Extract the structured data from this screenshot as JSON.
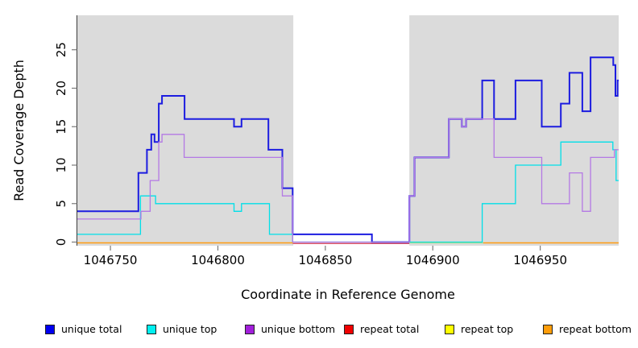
{
  "figure": {
    "xlabel": "Coordinate in Reference Genome",
    "ylabel": "Read Coverage Depth"
  },
  "chart_data": {
    "type": "line",
    "subtype": "step-plot-read-coverage",
    "title": "",
    "xlabel": "Coordinate in Reference Genome",
    "ylabel": "Read Coverage Depth",
    "xlim": [
      1046734.6,
      1046986.5
    ],
    "ylim": [
      0,
      29.5
    ],
    "grid": false,
    "x_ticks": [
      1046750,
      1046800,
      1046850,
      1046900,
      1046950
    ],
    "y_ticks": [
      0,
      5,
      10,
      15,
      20,
      25
    ],
    "background_color": "#ffffff",
    "shaded_regions": [
      {
        "name": "left-gray-band",
        "x0": 1046734.6,
        "x1": 1046835.1,
        "color": "#DBDBDB"
      },
      {
        "name": "right-gray-band",
        "x0": 1046889.1,
        "x1": 1046986.5,
        "color": "#DBDBDB"
      }
    ],
    "white_gap_region": {
      "x0": 1046835.1,
      "x1": 1046889.1
    },
    "legend_position": "bottom-row",
    "series": [
      {
        "name": "unique total",
        "color": "#1C1CE0",
        "legend_color": "#0000F0",
        "width": 2,
        "x_end": 1046986.5,
        "steps": [
          [
            1046734.6,
            4
          ],
          [
            1046763,
            9
          ],
          [
            1046767,
            12
          ],
          [
            1046769,
            14
          ],
          [
            1046770.5,
            13
          ],
          [
            1046772.5,
            18
          ],
          [
            1046774,
            19
          ],
          [
            1046784.5,
            16
          ],
          [
            1046807.5,
            15
          ],
          [
            1046811,
            16
          ],
          [
            1046823.5,
            12
          ],
          [
            1046830,
            7
          ],
          [
            1046834.8,
            1
          ],
          [
            1046871.7,
            0
          ],
          [
            1046889.1,
            6
          ],
          [
            1046891.5,
            11
          ],
          [
            1046907.5,
            16
          ],
          [
            1046913.5,
            15
          ],
          [
            1046915.5,
            16
          ],
          [
            1046923,
            21
          ],
          [
            1046928.5,
            16
          ],
          [
            1046938.5,
            21
          ],
          [
            1046950.7,
            15
          ],
          [
            1046959.6,
            18
          ],
          [
            1046963.6,
            22
          ],
          [
            1046969.6,
            17
          ],
          [
            1046973.4,
            24
          ],
          [
            1046984,
            23
          ],
          [
            1046985,
            19
          ],
          [
            1046986,
            21
          ]
        ]
      },
      {
        "name": "unique top",
        "color": "#00DFE8",
        "legend_color": "#00F0F0",
        "width": 1.3,
        "x_end": 1046986.5,
        "steps": [
          [
            1046734.6,
            1
          ],
          [
            1046764,
            6
          ],
          [
            1046771,
            5
          ],
          [
            1046807.5,
            4
          ],
          [
            1046811,
            5
          ],
          [
            1046824,
            1
          ],
          [
            1046834.8,
            0
          ],
          [
            1046923,
            5
          ],
          [
            1046938.5,
            10
          ],
          [
            1046959.6,
            13
          ],
          [
            1046983.8,
            12
          ],
          [
            1046985.3,
            8
          ]
        ]
      },
      {
        "name": "unique bottom",
        "color": "#B479E4",
        "legend_color": "#A21FDB",
        "width": 1.3,
        "x_end": 1046986.5,
        "steps": [
          [
            1046734.6,
            3
          ],
          [
            1046764.2,
            4
          ],
          [
            1046768.5,
            8
          ],
          [
            1046772.5,
            13
          ],
          [
            1046774,
            14
          ],
          [
            1046784.3,
            11
          ],
          [
            1046830,
            6
          ],
          [
            1046834.8,
            0
          ],
          [
            1046889.1,
            6
          ],
          [
            1046891.5,
            11
          ],
          [
            1046907.5,
            16
          ],
          [
            1046913.5,
            15
          ],
          [
            1046915.5,
            16
          ],
          [
            1046928.5,
            11
          ],
          [
            1046950.7,
            5
          ],
          [
            1046963.6,
            9
          ],
          [
            1046969.6,
            4
          ],
          [
            1046973.4,
            11
          ],
          [
            1046984.5,
            12
          ]
        ]
      },
      {
        "name": "repeat total",
        "color": "#DD4963",
        "legend_color": "#F00000",
        "width": 1.3,
        "segments": [
          {
            "x0": 1046834.8,
            "x1": 1046889.1,
            "value": 0
          }
        ]
      },
      {
        "name": "repeat top",
        "color": "#93DD93",
        "legend_color": "#FFFF00",
        "width": 1.3,
        "segments": [
          {
            "x0": 1046889.1,
            "x1": 1046923.5,
            "value": 0
          }
        ]
      },
      {
        "name": "repeat bottom",
        "color": "#FF9C12",
        "legend_color": "#FF9D0A",
        "width": 1.6,
        "segments": [
          {
            "x0": 1046734.6,
            "x1": 1046834.8,
            "value": 0
          },
          {
            "x0": 1046923.5,
            "x1": 1046986.5,
            "value": 0
          }
        ]
      }
    ],
    "legend": [
      {
        "label": "unique total",
        "color": "#0000F0"
      },
      {
        "label": "unique top",
        "color": "#00F0F0"
      },
      {
        "label": "unique bottom",
        "color": "#A21FDB"
      },
      {
        "label": "repeat total",
        "color": "#F00000"
      },
      {
        "label": "repeat top",
        "color": "#FFFF00"
      },
      {
        "label": "repeat bottom",
        "color": "#FF9D0A"
      }
    ]
  }
}
